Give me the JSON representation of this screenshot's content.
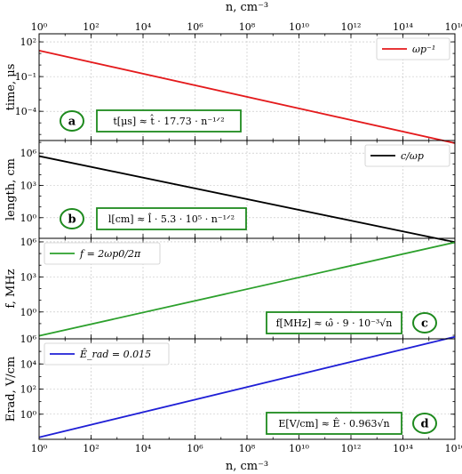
{
  "colors": {
    "red": "#e41a1c",
    "black": "#000000",
    "green": "#2ca02c",
    "blue": "#1f1fd6",
    "box_border": "#1e8a1e"
  },
  "chart_data": [
    {
      "type": "line",
      "panel": "a",
      "ylabel": "time, μs",
      "xlim": [
        1,
        1e+16
      ],
      "xscale": "log",
      "ylim": [
        3e-07,
        500.0
      ],
      "yscale": "log",
      "yticks": [
        {
          "v": 100,
          "label": "10²"
        },
        {
          "v": 0.1,
          "label": "10⁻¹"
        },
        {
          "v": 0.0001,
          "label": "10⁻⁴"
        }
      ],
      "series": [
        {
          "name": "ωp⁻¹",
          "color": "#e41a1c",
          "x": [
            1,
            1e+16
          ],
          "y": [
            17.73,
            1.773e-07
          ]
        }
      ],
      "legend": "top-right",
      "formula": "t[μs] ≈ t̂ · 17.73 · n⁻¹ᐟ²",
      "formula_pos": "bottom-left"
    },
    {
      "type": "line",
      "panel": "b",
      "ylabel": "length, cm",
      "xlim": [
        1,
        1e+16
      ],
      "xscale": "log",
      "ylim": [
        0.012,
        15000000.0
      ],
      "yscale": "log",
      "yticks": [
        {
          "v": 1000000.0,
          "label": "10⁶"
        },
        {
          "v": 1000.0,
          "label": "10³"
        },
        {
          "v": 1,
          "label": "10⁰"
        }
      ],
      "series": [
        {
          "name": "c/ωp",
          "color": "#000000",
          "x": [
            1,
            1e+16
          ],
          "y": [
            530000,
            0.0053
          ]
        }
      ],
      "legend": "top-right",
      "formula": "l[cm] ≈ l̂ · 5.3 · 10⁵ · n⁻¹ᐟ²",
      "formula_pos": "bottom-left"
    },
    {
      "type": "line",
      "panel": "c",
      "ylabel": "f, MHz",
      "xlim": [
        1,
        1e+16
      ],
      "xscale": "log",
      "ylim": [
        0.005,
        2000000.0
      ],
      "yscale": "log",
      "yticks": [
        {
          "v": 1000000.0,
          "label": "10⁶"
        },
        {
          "v": 1000.0,
          "label": "10³"
        },
        {
          "v": 1,
          "label": "10⁰"
        }
      ],
      "series": [
        {
          "name": "f = 2ωp0/2π",
          "color": "#2ca02c",
          "x": [
            1,
            1e+16
          ],
          "y": [
            0.009,
            900000
          ]
        }
      ],
      "legend": "top-left",
      "formula": "f[MHz] ≈ ω̂ · 9 · 10⁻³√n",
      "formula_pos": "bottom-right"
    },
    {
      "type": "line",
      "panel": "d",
      "ylabel": "Erad, V/cm",
      "xlabel": "n, cm⁻³",
      "xlim": [
        1,
        1e+16
      ],
      "xscale": "log",
      "ylim": [
        0.01,
        1000000.0
      ],
      "yscale": "log",
      "yticks": [
        {
          "v": 1000000.0,
          "label": "10⁶"
        },
        {
          "v": 10000.0,
          "label": "10⁴"
        },
        {
          "v": 100.0,
          "label": "10²"
        },
        {
          "v": 1,
          "label": "10⁰"
        }
      ],
      "series": [
        {
          "name": "Ê_rad = 0.015",
          "color": "#1f1fd6",
          "x": [
            1,
            1e+16
          ],
          "y": [
            0.0145,
            1450000.0
          ]
        }
      ],
      "legend": "top-left",
      "formula": "E[V/cm] ≈ Ê · 0.963√n",
      "formula_pos": "bottom-right"
    }
  ],
  "x_axis": {
    "label": "n, cm⁻³",
    "ticks": [
      {
        "v": 1,
        "label": "10⁰"
      },
      {
        "v": 100,
        "label": "10²"
      },
      {
        "v": 10000,
        "label": "10⁴"
      },
      {
        "v": 1000000.0,
        "label": "10⁶"
      },
      {
        "v": 100000000.0,
        "label": "10⁸"
      },
      {
        "v": 10000000000.0,
        "label": "10¹⁰"
      },
      {
        "v": 1000000000000.0,
        "label": "10¹²"
      },
      {
        "v": 100000000000000.0,
        "label": "10¹⁴"
      },
      {
        "v": 1e+16,
        "label": "10¹⁶"
      }
    ]
  }
}
